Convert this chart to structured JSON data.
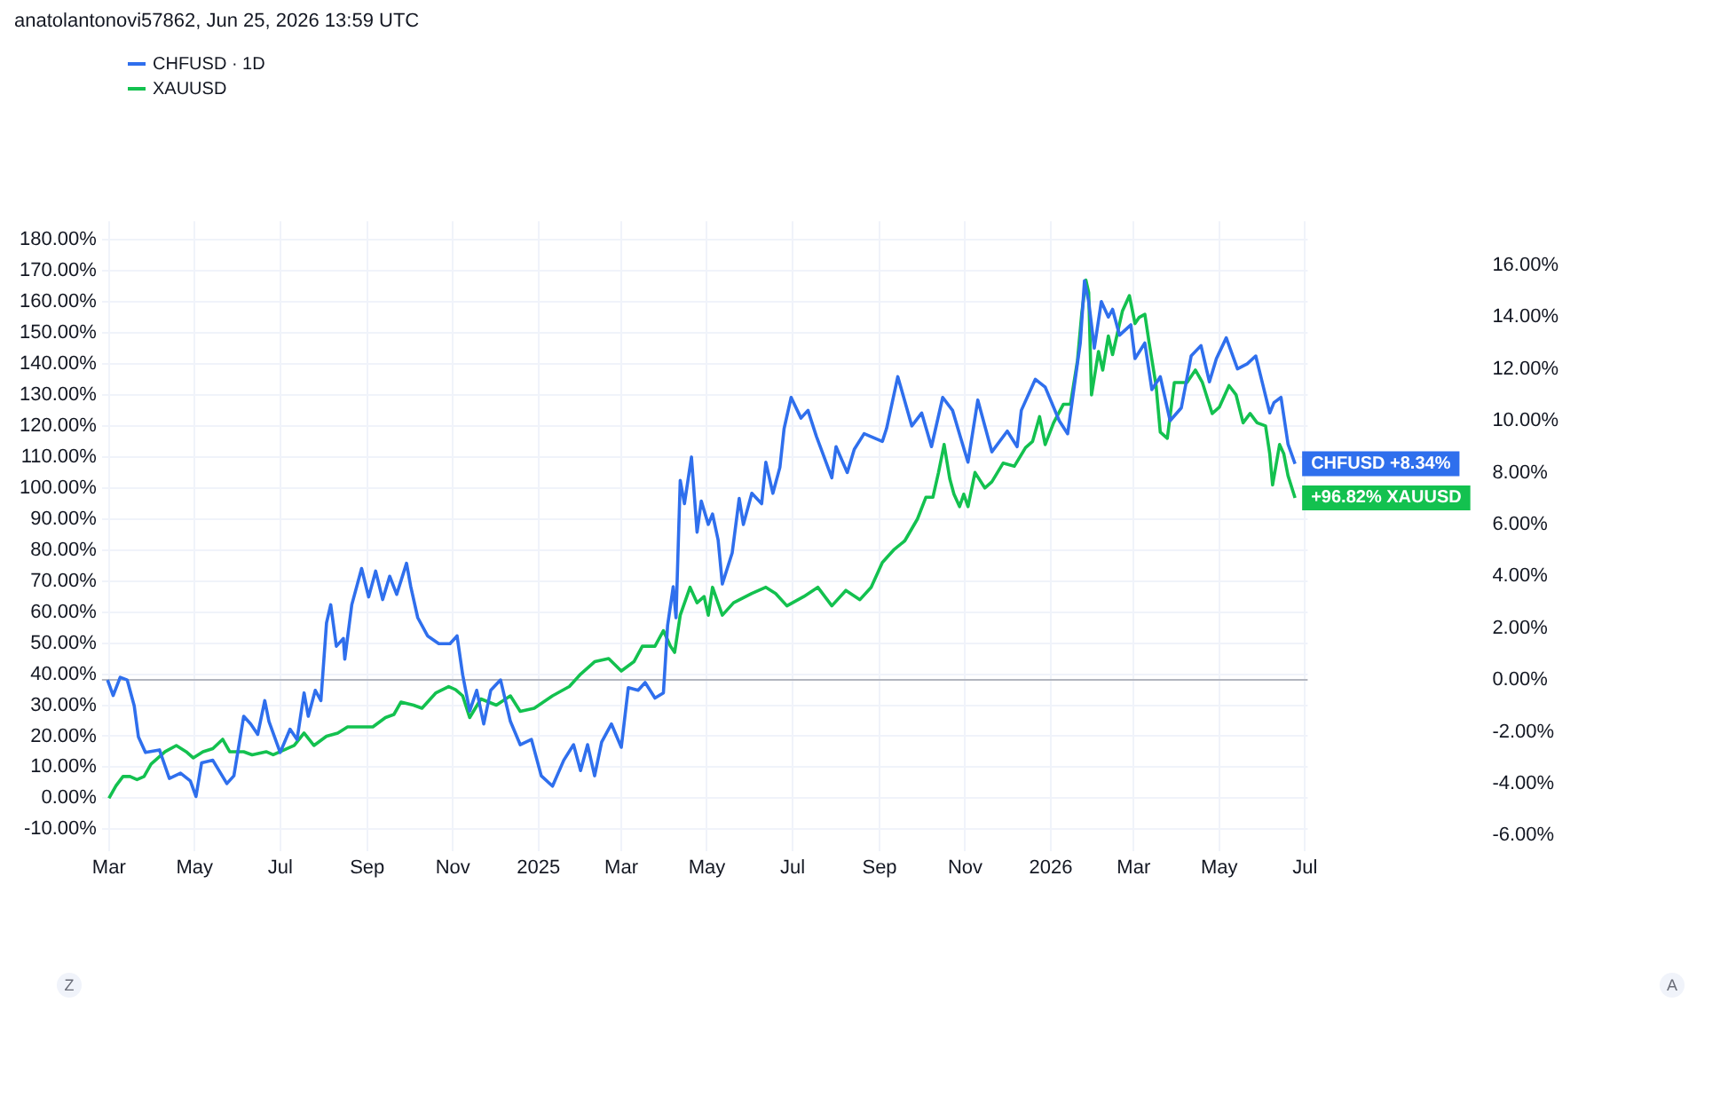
{
  "chart_data": {
    "type": "line",
    "title": "anatolantonovi57862, Jun 25, 2026 13:59 UTC",
    "legend": "top left",
    "grid": true,
    "marker": "none",
    "annotations": [
      "Z",
      "A"
    ],
    "xlim": [
      "2024-02-25",
      "2026-07-03"
    ],
    "xticks": [
      {
        "value": "2024-03",
        "label": "Mar"
      },
      {
        "value": "2024-05",
        "label": "May"
      },
      {
        "value": "2024-07",
        "label": "Jul"
      },
      {
        "value": "2024-09",
        "label": "Sep"
      },
      {
        "value": "2024-11",
        "label": "Nov"
      },
      {
        "value": "2025-01",
        "label": "2025"
      },
      {
        "value": "2025-03",
        "label": "Mar"
      },
      {
        "value": "2025-05",
        "label": "May"
      },
      {
        "value": "2025-07",
        "label": "Jul"
      },
      {
        "value": "2025-09",
        "label": "Sep"
      },
      {
        "value": "2025-11",
        "label": "Nov"
      },
      {
        "value": "2026-01",
        "label": "2026"
      },
      {
        "value": "2026-03",
        "label": "Mar"
      },
      {
        "value": "2026-05",
        "label": "May"
      },
      {
        "value": "2026-07",
        "label": "Jul"
      }
    ],
    "ylim": [
      -17,
      186
    ],
    "yticks": [
      {
        "value": -10,
        "label": "-10.00%"
      },
      {
        "value": 0,
        "label": "0.00%"
      },
      {
        "value": 10,
        "label": "10.00%"
      },
      {
        "value": 20,
        "label": "20.00%"
      },
      {
        "value": 30,
        "label": "30.00%"
      },
      {
        "value": 40,
        "label": "40.00%"
      },
      {
        "value": 50,
        "label": "50.00%"
      },
      {
        "value": 60,
        "label": "60.00%"
      },
      {
        "value": 70,
        "label": "70.00%"
      },
      {
        "value": 80,
        "label": "80.00%"
      },
      {
        "value": 90,
        "label": "90.00%"
      },
      {
        "value": 100,
        "label": "100.00%"
      },
      {
        "value": 110,
        "label": "110.00%"
      },
      {
        "value": 120,
        "label": "120.00%"
      },
      {
        "value": 130,
        "label": "130.00%"
      },
      {
        "value": 140,
        "label": "140.00%"
      },
      {
        "value": 150,
        "label": "150.00%"
      },
      {
        "value": 160,
        "label": "160.00%"
      },
      {
        "value": 170,
        "label": "170.00%"
      },
      {
        "value": 180,
        "label": "180.00%"
      }
    ],
    "y2lim": [
      -6.6,
      17.7
    ],
    "y2ticks": [
      {
        "value": -6,
        "label": "-6.00%"
      },
      {
        "value": -4,
        "label": "-4.00%"
      },
      {
        "value": -2,
        "label": "-2.00%"
      },
      {
        "value": 0,
        "label": "0.00%"
      },
      {
        "value": 2,
        "label": "2.00%"
      },
      {
        "value": 4,
        "label": "4.00%"
      },
      {
        "value": 6,
        "label": "6.00%"
      },
      {
        "value": 8,
        "label": "8.00%"
      },
      {
        "value": 10,
        "label": "10.00%"
      },
      {
        "value": 12,
        "label": "12.00%"
      },
      {
        "value": 14,
        "label": "14.00%"
      },
      {
        "value": 16,
        "label": "16.00%"
      }
    ],
    "ref_lines": [
      {
        "axis": "y2",
        "value": 0,
        "color": "#b2b5be"
      }
    ],
    "series": [
      {
        "name": "CHFUSD · 1D",
        "color": "#2f6fed",
        "axis": "y2",
        "x": [
          "2024-02-29",
          "2024-03-04",
          "2024-03-09",
          "2024-03-14",
          "2024-03-19",
          "2024-03-22",
          "2024-03-27",
          "2024-04-06",
          "2024-04-13",
          "2024-04-21",
          "2024-04-28",
          "2024-05-02",
          "2024-05-06",
          "2024-05-14",
          "2024-05-24",
          "2024-05-29",
          "2024-06-05",
          "2024-06-10",
          "2024-06-15",
          "2024-06-20",
          "2024-06-23",
          "2024-07-01",
          "2024-07-08",
          "2024-07-13",
          "2024-07-18",
          "2024-07-21",
          "2024-07-26",
          "2024-07-30",
          "2024-08-03",
          "2024-08-06",
          "2024-08-10",
          "2024-08-15",
          "2024-08-16",
          "2024-08-21",
          "2024-08-28",
          "2024-09-02",
          "2024-09-07",
          "2024-09-12",
          "2024-09-17",
          "2024-09-22",
          "2024-09-29",
          "2024-10-02",
          "2024-10-07",
          "2024-10-14",
          "2024-10-22",
          "2024-10-30",
          "2024-11-04",
          "2024-11-08",
          "2024-11-13",
          "2024-11-18",
          "2024-11-23",
          "2024-11-28",
          "2024-12-05",
          "2024-12-12",
          "2024-12-19",
          "2024-12-27",
          "2025-01-03",
          "2025-01-11",
          "2025-01-19",
          "2025-01-26",
          "2025-01-31",
          "2025-02-05",
          "2025-02-10",
          "2025-02-15",
          "2025-02-22",
          "2025-03-01",
          "2025-03-06",
          "2025-03-13",
          "2025-03-18",
          "2025-03-25",
          "2025-03-31",
          "2025-04-03",
          "2025-04-07",
          "2025-04-09",
          "2025-04-12",
          "2025-04-15",
          "2025-04-20",
          "2025-04-24",
          "2025-04-27",
          "2025-05-02",
          "2025-05-05",
          "2025-05-09",
          "2025-05-12",
          "2025-05-19",
          "2025-05-24",
          "2025-05-27",
          "2025-06-02",
          "2025-06-09",
          "2025-06-12",
          "2025-06-17",
          "2025-06-22",
          "2025-06-25",
          "2025-06-30",
          "2025-07-07",
          "2025-07-12",
          "2025-07-18",
          "2025-07-29",
          "2025-08-01",
          "2025-08-09",
          "2025-08-14",
          "2025-08-21",
          "2025-09-03",
          "2025-09-06",
          "2025-09-14",
          "2025-09-24",
          "2025-10-01",
          "2025-10-08",
          "2025-10-16",
          "2025-10-23",
          "2025-10-29",
          "2025-11-03",
          "2025-11-10",
          "2025-11-20",
          "2025-12-01",
          "2025-12-08",
          "2025-12-11",
          "2025-12-21",
          "2025-12-28",
          "2026-01-07",
          "2026-01-13",
          "2026-01-22",
          "2026-01-25",
          "2026-01-28",
          "2026-02-01",
          "2026-02-06",
          "2026-02-11",
          "2026-02-14",
          "2026-02-19",
          "2026-02-27",
          "2026-03-02",
          "2026-03-09",
          "2026-03-14",
          "2026-03-20",
          "2026-03-27",
          "2026-04-04",
          "2026-04-11",
          "2026-04-18",
          "2026-04-24",
          "2026-04-29",
          "2026-05-06",
          "2026-05-14",
          "2026-05-21",
          "2026-05-27",
          "2026-06-01",
          "2026-06-06",
          "2026-06-09",
          "2026-06-14",
          "2026-06-19",
          "2026-06-24"
        ],
        "values": [
          0.0,
          -0.6,
          0.1,
          0.0,
          -1.0,
          -2.2,
          -2.8,
          -2.7,
          -3.8,
          -3.6,
          -3.9,
          -4.5,
          -3.2,
          -3.1,
          -4.0,
          -3.7,
          -1.4,
          -1.7,
          -2.1,
          -0.8,
          -1.6,
          -2.8,
          -1.9,
          -2.3,
          -0.5,
          -1.4,
          -0.4,
          -0.8,
          2.2,
          2.9,
          1.3,
          1.6,
          0.8,
          2.9,
          4.3,
          3.2,
          4.2,
          3.1,
          4.0,
          3.3,
          4.5,
          3.6,
          2.4,
          1.7,
          1.4,
          1.4,
          1.7,
          0.2,
          -1.2,
          -0.4,
          -1.7,
          -0.4,
          0.0,
          -1.6,
          -2.5,
          -2.3,
          -3.7,
          -4.1,
          -3.1,
          -2.5,
          -3.5,
          -2.5,
          -3.7,
          -2.4,
          -1.7,
          -2.6,
          -0.3,
          -0.4,
          -0.1,
          -0.7,
          -0.5,
          2.1,
          3.6,
          2.4,
          7.7,
          6.8,
          8.6,
          5.7,
          6.9,
          6.0,
          6.4,
          5.4,
          3.7,
          4.9,
          7.0,
          6.0,
          7.2,
          6.8,
          8.4,
          7.2,
          8.2,
          9.7,
          10.9,
          10.1,
          10.4,
          9.4,
          7.8,
          9.0,
          8.0,
          8.9,
          9.5,
          9.2,
          9.7,
          11.7,
          9.8,
          10.3,
          9.0,
          10.9,
          10.4,
          9.3,
          8.4,
          10.8,
          8.8,
          9.6,
          9.0,
          10.4,
          11.6,
          11.3,
          10.0,
          9.5,
          13.0,
          15.4,
          14.6,
          12.8,
          14.6,
          14.0,
          14.3,
          13.3,
          13.7,
          12.4,
          13.0,
          11.2,
          11.7,
          10.0,
          10.5,
          12.5,
          12.9,
          11.5,
          12.4,
          13.2,
          12.0,
          12.2,
          12.5,
          11.4,
          10.3,
          10.7,
          10.9,
          9.1,
          8.34
        ],
        "value_labels": [
          null,
          null,
          null,
          null,
          null,
          null,
          null,
          null,
          null,
          null,
          null,
          null,
          null,
          null,
          null,
          null,
          null,
          null,
          null,
          null,
          null,
          null,
          null,
          null,
          null,
          null,
          null,
          null,
          null,
          null,
          null,
          null,
          null,
          null,
          null,
          null,
          null,
          null,
          null,
          null,
          null,
          null,
          null,
          null,
          null,
          null,
          null,
          null,
          null,
          null,
          null,
          null,
          null,
          null,
          null,
          null,
          null,
          null,
          null,
          null,
          null,
          null,
          null,
          null,
          null,
          null,
          null,
          null,
          null,
          null,
          null,
          null,
          null,
          null,
          null,
          null,
          null,
          null,
          null,
          null,
          null,
          null,
          null,
          null,
          null,
          null,
          null,
          null,
          null,
          null,
          null,
          null,
          null,
          null,
          null,
          null,
          null,
          null,
          null,
          null,
          null,
          null,
          null,
          null,
          null,
          null,
          null,
          null,
          null,
          null,
          null,
          null,
          null,
          null,
          null,
          null,
          null,
          null,
          null,
          null,
          null,
          null,
          null,
          null,
          null,
          null,
          null,
          null,
          null,
          null,
          null,
          null,
          null,
          null,
          null,
          null,
          null,
          null,
          null,
          null,
          null,
          null,
          null,
          null,
          null,
          null,
          null,
          null,
          "CHFUSD +8.34%"
        ]
      },
      {
        "name": "XAUUSD",
        "color": "#13c14f",
        "axis": "y",
        "x": [
          "2024-03-01",
          "2024-03-06",
          "2024-03-11",
          "2024-03-16",
          "2024-03-21",
          "2024-03-26",
          "2024-03-31",
          "2024-04-05",
          "2024-04-10",
          "2024-04-18",
          "2024-04-25",
          "2024-04-30",
          "2024-05-07",
          "2024-05-14",
          "2024-05-21",
          "2024-05-26",
          "2024-06-05",
          "2024-06-11",
          "2024-06-21",
          "2024-06-26",
          "2024-07-01",
          "2024-07-11",
          "2024-07-18",
          "2024-07-25",
          "2024-08-03",
          "2024-08-11",
          "2024-08-18",
          "2024-08-28",
          "2024-09-05",
          "2024-09-14",
          "2024-09-20",
          "2024-09-25",
          "2024-10-04",
          "2024-10-10",
          "2024-10-20",
          "2024-10-29",
          "2024-11-03",
          "2024-11-08",
          "2024-11-13",
          "2024-11-21",
          "2024-12-02",
          "2024-12-12",
          "2024-12-19",
          "2024-12-29",
          "2025-01-11",
          "2025-01-23",
          "2025-01-31",
          "2025-02-10",
          "2025-02-20",
          "2025-03-01",
          "2025-03-10",
          "2025-03-16",
          "2025-03-25",
          "2025-03-31",
          "2025-04-05",
          "2025-04-08",
          "2025-04-12",
          "2025-04-19",
          "2025-04-24",
          "2025-04-29",
          "2025-05-02",
          "2025-05-05",
          "2025-05-12",
          "2025-05-20",
          "2025-06-02",
          "2025-06-12",
          "2025-06-19",
          "2025-06-27",
          "2025-07-09",
          "2025-07-19",
          "2025-07-29",
          "2025-08-08",
          "2025-08-18",
          "2025-08-26",
          "2025-09-03",
          "2025-09-11",
          "2025-09-19",
          "2025-09-28",
          "2025-10-04",
          "2025-10-09",
          "2025-10-13",
          "2025-10-17",
          "2025-10-21",
          "2025-10-24",
          "2025-10-28",
          "2025-10-31",
          "2025-11-03",
          "2025-11-08",
          "2025-11-15",
          "2025-11-20",
          "2025-11-28",
          "2025-12-06",
          "2025-12-14",
          "2025-12-19",
          "2025-12-24",
          "2025-12-28",
          "2026-01-03",
          "2026-01-10",
          "2026-01-15",
          "2026-01-20",
          "2026-01-23",
          "2026-01-26",
          "2026-01-28",
          "2026-01-30",
          "2026-02-04",
          "2026-02-07",
          "2026-02-11",
          "2026-02-14",
          "2026-02-17",
          "2026-02-21",
          "2026-02-26",
          "2026-03-02",
          "2026-03-05",
          "2026-03-09",
          "2026-03-12",
          "2026-03-17",
          "2026-03-20",
          "2026-03-25",
          "2026-03-30",
          "2026-04-08",
          "2026-04-14",
          "2026-04-19",
          "2026-04-26",
          "2026-05-01",
          "2026-05-08",
          "2026-05-13",
          "2026-05-18",
          "2026-05-23",
          "2026-05-28",
          "2026-06-03",
          "2026-06-06",
          "2026-06-08",
          "2026-06-13",
          "2026-06-16",
          "2026-06-19",
          "2026-06-24"
        ],
        "values": [
          0,
          4,
          7,
          7,
          6,
          7,
          11,
          13,
          15,
          17,
          15,
          13,
          15,
          16,
          19,
          15,
          15,
          14,
          15,
          14,
          15,
          17,
          21,
          17,
          20,
          21,
          23,
          23,
          23,
          26,
          27,
          31,
          30,
          29,
          34,
          36,
          35,
          33,
          26,
          32,
          30,
          33,
          28,
          29,
          33,
          36,
          40,
          44,
          45,
          41,
          44,
          49,
          49,
          54,
          49,
          47,
          59,
          68,
          63,
          65,
          59,
          68,
          59,
          63,
          66,
          68,
          66,
          62,
          65,
          68,
          62,
          67,
          64,
          68,
          76,
          80,
          83,
          90,
          97,
          97,
          105,
          114,
          103,
          98,
          94,
          98,
          94,
          105,
          100,
          102,
          108,
          107,
          113,
          115,
          123,
          114,
          121,
          127,
          127,
          141,
          156,
          167,
          163,
          130,
          144,
          138,
          149,
          143,
          149,
          157,
          162,
          153,
          155,
          156,
          147,
          133,
          118,
          116,
          134,
          134,
          138,
          134,
          124,
          126,
          133,
          130,
          121,
          124,
          121,
          120,
          111,
          101,
          114,
          111,
          104,
          96.82
        ],
        "value_labels": [
          null,
          null,
          null,
          null,
          null,
          null,
          null,
          null,
          null,
          null,
          null,
          null,
          null,
          null,
          null,
          null,
          null,
          null,
          null,
          null,
          null,
          null,
          null,
          null,
          null,
          null,
          null,
          null,
          null,
          null,
          null,
          null,
          null,
          null,
          null,
          null,
          null,
          null,
          null,
          null,
          null,
          null,
          null,
          null,
          null,
          null,
          null,
          null,
          null,
          null,
          null,
          null,
          null,
          null,
          null,
          null,
          null,
          null,
          null,
          null,
          null,
          null,
          null,
          null,
          null,
          null,
          null,
          null,
          null,
          null,
          null,
          null,
          null,
          null,
          null,
          null,
          null,
          null,
          null,
          null,
          null,
          null,
          null,
          null,
          null,
          null,
          null,
          null,
          null,
          null,
          null,
          null,
          null,
          null,
          null,
          null,
          null,
          null,
          null,
          null,
          null,
          null,
          null,
          null,
          null,
          null,
          null,
          null,
          null,
          null,
          null,
          null,
          null,
          null,
          null,
          null,
          null,
          null,
          null,
          null,
          null,
          null,
          null,
          null,
          null,
          null,
          null,
          null,
          null,
          null,
          null,
          null,
          null,
          null,
          null,
          "+96.82% XAUUSD"
        ]
      }
    ]
  }
}
